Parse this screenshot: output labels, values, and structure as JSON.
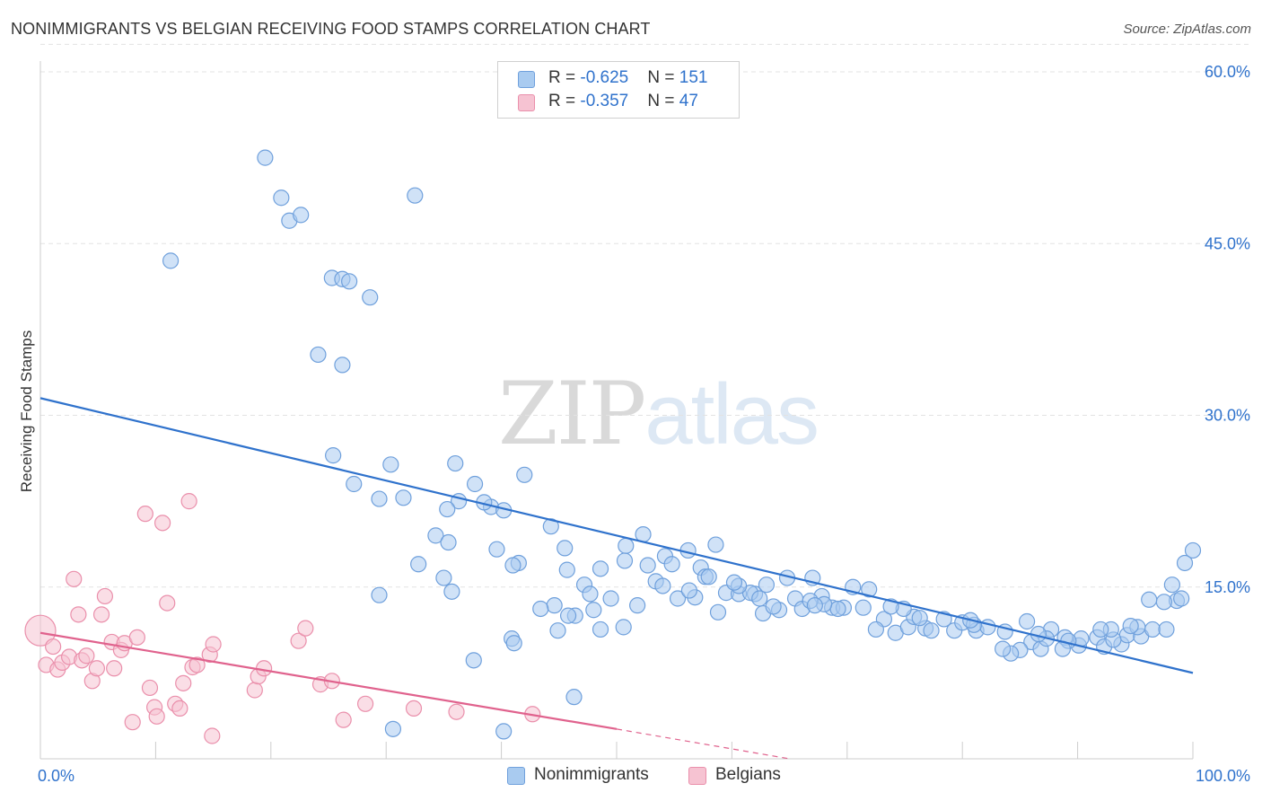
{
  "header": {
    "title": "NONIMMIGRANTS VS BELGIAN RECEIVING FOOD STAMPS CORRELATION CHART",
    "source": "Source: ZipAtlas.com"
  },
  "watermark": {
    "part1": "ZIP",
    "part2": "atlas"
  },
  "legend_top": [
    {
      "r_label": "R = ",
      "r_value": "-0.625",
      "n_label": "N = ",
      "n_value": "151"
    },
    {
      "r_label": "R = ",
      "r_value": "-0.357",
      "n_label": "N = ",
      "n_value": "47"
    }
  ],
  "legend_bottom": [
    "Nonimmigrants",
    "Belgians"
  ],
  "colors": {
    "blue_fill": "#a9cbf0",
    "blue_stroke": "#6fa0dc",
    "blue_line": "#2f72cc",
    "pink_fill": "#f6c3d2",
    "pink_stroke": "#ea8fab",
    "pink_line": "#e0628d",
    "axis_label": "#2f72cc",
    "grid": "#e3e3e3"
  },
  "chart_data": {
    "type": "scatter",
    "title": "NONIMMIGRANTS VS BELGIAN RECEIVING FOOD STAMPS CORRELATION CHART",
    "ylabel": "Receiving Food Stamps",
    "xlabel": "",
    "xlim": [
      0,
      100
    ],
    "ylim": [
      0,
      63
    ],
    "x_ticks": [
      0,
      10,
      20,
      30,
      40,
      50,
      60,
      70,
      80,
      90,
      100
    ],
    "x_tick_labels": [
      {
        "value": 0,
        "label": "0.0%"
      },
      {
        "value": 100,
        "label": "100.0%"
      }
    ],
    "y_ticks": [
      {
        "value": 15,
        "label": "15.0%"
      },
      {
        "value": 30,
        "label": "30.0%"
      },
      {
        "value": 45,
        "label": "45.0%"
      },
      {
        "value": 60,
        "label": "60.0%"
      }
    ],
    "grid": "horizontal dashed",
    "series": [
      {
        "name": "Nonimmigrants",
        "color": "#a9cbf0",
        "trend": {
          "x": [
            0,
            100
          ],
          "y": [
            31.5,
            7.5
          ],
          "style": "solid"
        },
        "points": [
          [
            11.3,
            43.5
          ],
          [
            19.5,
            52.5
          ],
          [
            21.6,
            47.0
          ],
          [
            22.6,
            47.5
          ],
          [
            20.9,
            49.0
          ],
          [
            32.5,
            49.2
          ],
          [
            25.3,
            42.0
          ],
          [
            26.2,
            41.9
          ],
          [
            26.8,
            41.7
          ],
          [
            28.6,
            40.3
          ],
          [
            24.1,
            35.3
          ],
          [
            26.2,
            34.4
          ],
          [
            25.4,
            26.5
          ],
          [
            27.2,
            24.0
          ],
          [
            29.4,
            22.7
          ],
          [
            30.4,
            25.7
          ],
          [
            31.5,
            22.8
          ],
          [
            36.0,
            25.8
          ],
          [
            37.7,
            24.0
          ],
          [
            36.3,
            22.5
          ],
          [
            39.1,
            22.0
          ],
          [
            35.3,
            21.8
          ],
          [
            38.5,
            22.4
          ],
          [
            40.2,
            21.7
          ],
          [
            42.0,
            24.8
          ],
          [
            34.3,
            19.5
          ],
          [
            35.4,
            18.9
          ],
          [
            39.6,
            18.3
          ],
          [
            41.5,
            17.1
          ],
          [
            41.0,
            16.9
          ],
          [
            32.8,
            17.0
          ],
          [
            35.0,
            15.8
          ],
          [
            35.7,
            14.6
          ],
          [
            29.4,
            14.3
          ],
          [
            44.3,
            20.3
          ],
          [
            45.5,
            18.4
          ],
          [
            45.7,
            16.5
          ],
          [
            47.2,
            15.2
          ],
          [
            48.6,
            16.6
          ],
          [
            52.3,
            19.6
          ],
          [
            50.8,
            18.6
          ],
          [
            52.7,
            16.9
          ],
          [
            50.7,
            17.3
          ],
          [
            54.2,
            17.7
          ],
          [
            56.2,
            18.2
          ],
          [
            58.6,
            18.7
          ],
          [
            57.3,
            16.7
          ],
          [
            54.8,
            17.0
          ],
          [
            53.4,
            15.5
          ],
          [
            54.0,
            15.1
          ],
          [
            51.8,
            13.4
          ],
          [
            49.5,
            14.0
          ],
          [
            47.7,
            14.4
          ],
          [
            48.0,
            13.0
          ],
          [
            46.4,
            12.5
          ],
          [
            44.6,
            13.4
          ],
          [
            43.4,
            13.1
          ],
          [
            45.8,
            12.5
          ],
          [
            44.9,
            11.2
          ],
          [
            48.6,
            11.3
          ],
          [
            50.6,
            11.5
          ],
          [
            55.3,
            14.0
          ],
          [
            56.8,
            14.1
          ],
          [
            57.7,
            15.9
          ],
          [
            59.5,
            14.5
          ],
          [
            60.6,
            14.4
          ],
          [
            62.0,
            14.4
          ],
          [
            58.8,
            12.8
          ],
          [
            62.7,
            12.7
          ],
          [
            61.6,
            14.5
          ],
          [
            60.6,
            15.1
          ],
          [
            63.0,
            15.2
          ],
          [
            65.5,
            14.0
          ],
          [
            64.8,
            15.8
          ],
          [
            67.0,
            15.8
          ],
          [
            66.1,
            13.1
          ],
          [
            67.8,
            14.2
          ],
          [
            68.7,
            13.2
          ],
          [
            69.7,
            13.2
          ],
          [
            70.5,
            15.0
          ],
          [
            71.9,
            14.8
          ],
          [
            73.2,
            12.2
          ],
          [
            72.5,
            11.3
          ],
          [
            74.2,
            11.0
          ],
          [
            75.3,
            11.5
          ],
          [
            76.8,
            11.4
          ],
          [
            77.3,
            11.2
          ],
          [
            79.3,
            11.2
          ],
          [
            80.0,
            11.9
          ],
          [
            81.2,
            11.2
          ],
          [
            82.2,
            11.5
          ],
          [
            83.7,
            11.1
          ],
          [
            81.0,
            11.7
          ],
          [
            86.0,
            10.2
          ],
          [
            86.8,
            9.6
          ],
          [
            87.7,
            11.3
          ],
          [
            88.9,
            10.6
          ],
          [
            90.1,
            9.9
          ],
          [
            90.3,
            10.5
          ],
          [
            91.7,
            10.6
          ],
          [
            92.3,
            9.8
          ],
          [
            93.8,
            10.0
          ],
          [
            94.3,
            10.8
          ],
          [
            95.5,
            10.7
          ],
          [
            96.5,
            11.3
          ],
          [
            93.1,
            10.4
          ],
          [
            97.7,
            11.3
          ],
          [
            98.6,
            13.8
          ],
          [
            99.0,
            14.0
          ],
          [
            100.0,
            18.2
          ],
          [
            99.3,
            17.1
          ],
          [
            98.2,
            15.2
          ],
          [
            97.5,
            13.7
          ],
          [
            96.2,
            13.9
          ],
          [
            95.2,
            11.5
          ],
          [
            94.6,
            11.6
          ],
          [
            92.9,
            11.3
          ],
          [
            92.0,
            11.3
          ],
          [
            89.2,
            10.3
          ],
          [
            88.7,
            9.6
          ],
          [
            87.3,
            10.5
          ],
          [
            85.0,
            9.5
          ],
          [
            84.2,
            9.2
          ],
          [
            83.5,
            9.6
          ],
          [
            78.4,
            12.2
          ],
          [
            75.8,
            12.4
          ],
          [
            74.9,
            13.1
          ],
          [
            73.8,
            13.3
          ],
          [
            71.4,
            13.2
          ],
          [
            69.2,
            13.1
          ],
          [
            68.0,
            13.5
          ],
          [
            66.8,
            13.8
          ],
          [
            64.1,
            13.0
          ],
          [
            63.6,
            13.3
          ],
          [
            62.4,
            14.0
          ],
          [
            60.2,
            15.4
          ],
          [
            58.0,
            15.9
          ],
          [
            56.3,
            14.7
          ],
          [
            85.6,
            12.0
          ],
          [
            86.6,
            10.9
          ],
          [
            76.3,
            12.3
          ],
          [
            80.7,
            12.1
          ],
          [
            40.9,
            10.5
          ],
          [
            37.6,
            8.6
          ],
          [
            41.1,
            10.1
          ],
          [
            46.3,
            5.4
          ],
          [
            30.6,
            2.6
          ],
          [
            40.2,
            2.4
          ],
          [
            67.2,
            13.4
          ]
        ]
      },
      {
        "name": "Belgians",
        "color": "#f6c3d2",
        "trend": {
          "x": [
            0,
            50
          ],
          "y": [
            11.0,
            2.6
          ],
          "style": "solid",
          "dashed_extension_to": [
            65,
            0
          ]
        },
        "points": [
          [
            0.0,
            11.2
          ],
          [
            0.5,
            8.2
          ],
          [
            1.1,
            9.8
          ],
          [
            1.5,
            7.8
          ],
          [
            1.9,
            8.4
          ],
          [
            2.5,
            8.9
          ],
          [
            2.9,
            15.7
          ],
          [
            3.3,
            12.6
          ],
          [
            3.6,
            8.6
          ],
          [
            4.0,
            9.0
          ],
          [
            4.5,
            6.8
          ],
          [
            4.9,
            7.9
          ],
          [
            5.3,
            12.6
          ],
          [
            5.6,
            14.2
          ],
          [
            6.4,
            7.9
          ],
          [
            6.2,
            10.2
          ],
          [
            7.0,
            9.5
          ],
          [
            7.3,
            10.1
          ],
          [
            8.4,
            10.6
          ],
          [
            8.0,
            3.2
          ],
          [
            9.1,
            21.4
          ],
          [
            9.5,
            6.2
          ],
          [
            9.9,
            4.5
          ],
          [
            10.1,
            3.7
          ],
          [
            10.6,
            20.6
          ],
          [
            11.0,
            13.6
          ],
          [
            11.7,
            4.8
          ],
          [
            12.1,
            4.4
          ],
          [
            12.4,
            6.6
          ],
          [
            12.9,
            22.5
          ],
          [
            13.2,
            8.0
          ],
          [
            13.6,
            8.2
          ],
          [
            14.7,
            9.1
          ],
          [
            15.0,
            10.0
          ],
          [
            14.9,
            2.0
          ],
          [
            18.6,
            6.0
          ],
          [
            18.9,
            7.2
          ],
          [
            19.4,
            7.9
          ],
          [
            22.4,
            10.3
          ],
          [
            23.0,
            11.4
          ],
          [
            24.3,
            6.5
          ],
          [
            25.3,
            6.8
          ],
          [
            26.3,
            3.4
          ],
          [
            28.2,
            4.8
          ],
          [
            32.4,
            4.4
          ],
          [
            36.1,
            4.1
          ],
          [
            42.7,
            3.9
          ]
        ]
      }
    ]
  }
}
